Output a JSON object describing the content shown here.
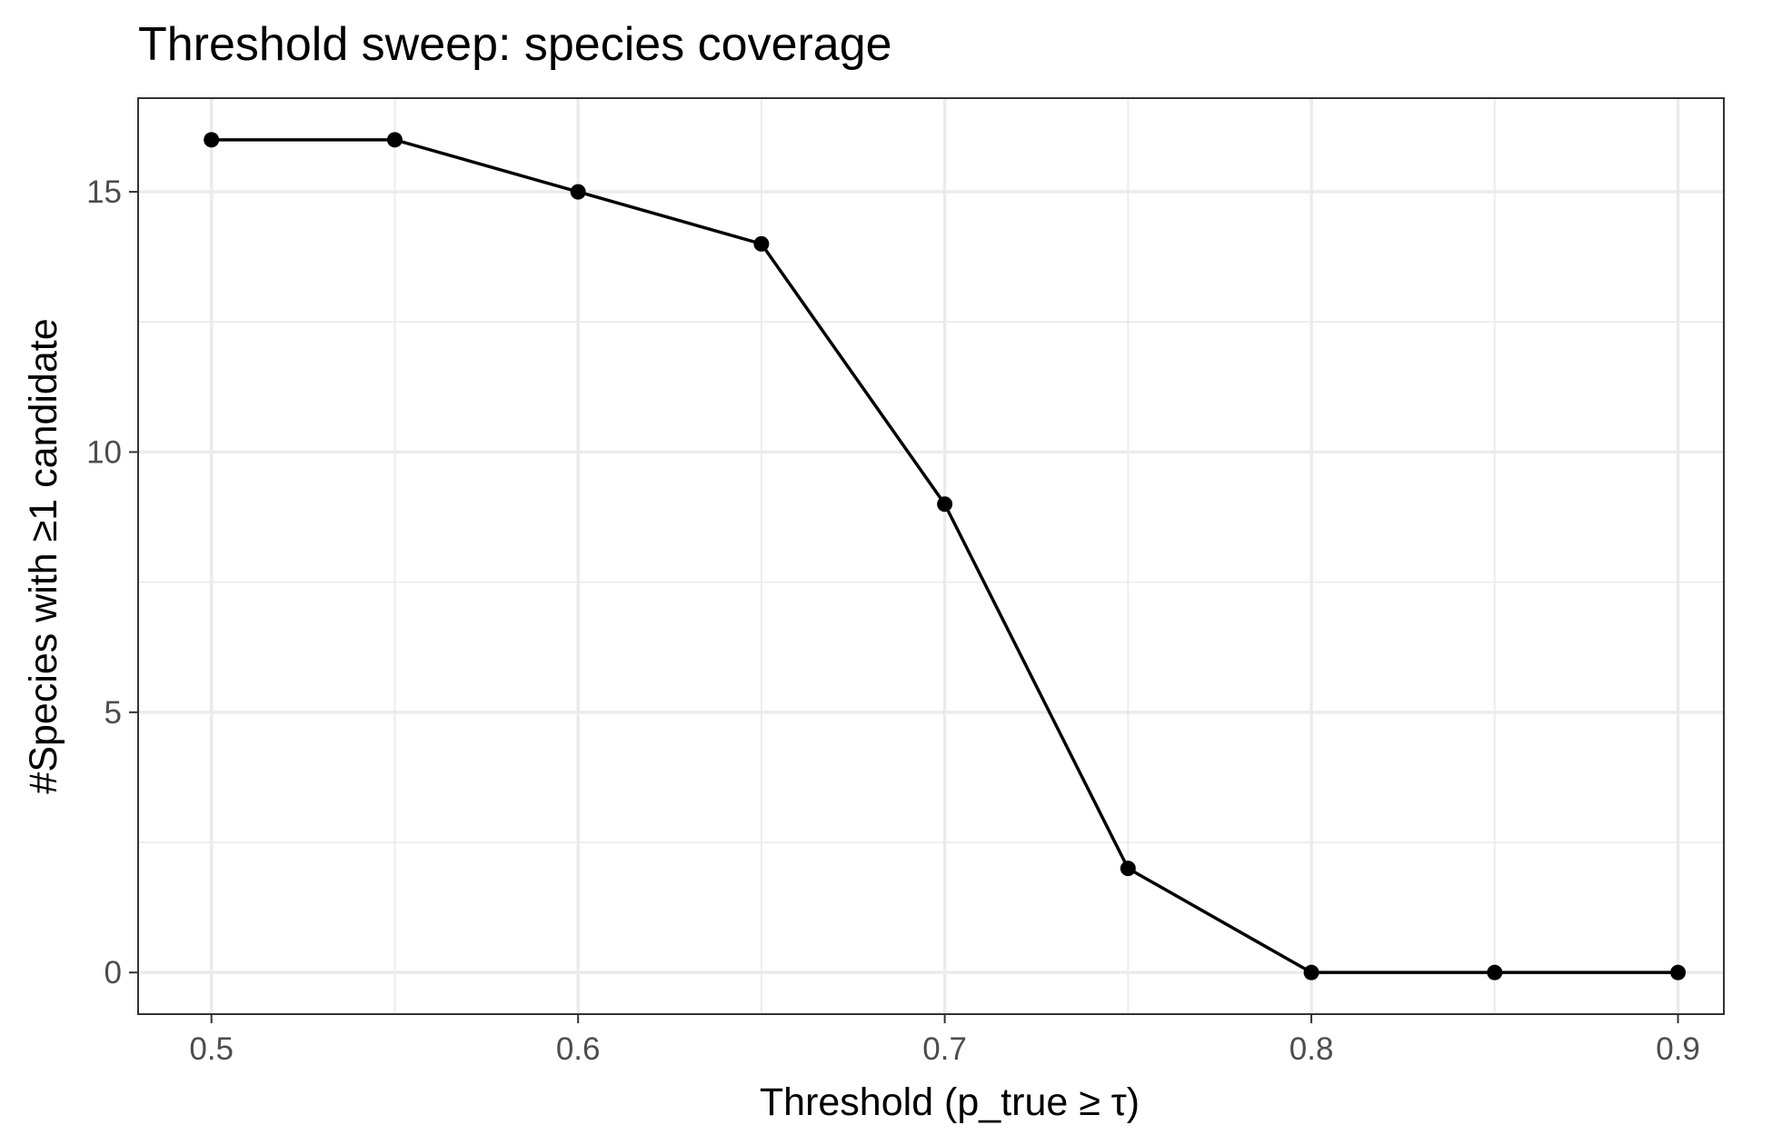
{
  "chart_data": {
    "type": "line",
    "title": "Threshold sweep: species coverage",
    "xlabel": "Threshold (p_true ≥ τ)",
    "ylabel": "#Species with ≥1 candidate",
    "x": [
      0.5,
      0.55,
      0.6,
      0.65,
      0.7,
      0.75,
      0.8,
      0.85,
      0.9
    ],
    "series": [
      {
        "values": [
          16,
          16,
          15,
          14,
          9,
          2,
          0,
          0,
          0
        ]
      }
    ],
    "xlim": [
      0.48,
      0.9125
    ],
    "ylim": [
      -0.8,
      16.8
    ],
    "x_ticks": [
      0.5,
      0.6,
      0.7,
      0.8,
      0.9
    ],
    "x_tick_labels": [
      "0.5",
      "0.6",
      "0.7",
      "0.8",
      "0.9"
    ],
    "y_ticks": [
      0,
      5,
      10,
      15
    ],
    "y_tick_labels": [
      "0",
      "5",
      "10",
      "15"
    ],
    "grid": true,
    "legend": "none",
    "colors": {
      "line": "#000000",
      "point": "#000000",
      "grid": "#ebebeb",
      "border": "#333333"
    }
  }
}
